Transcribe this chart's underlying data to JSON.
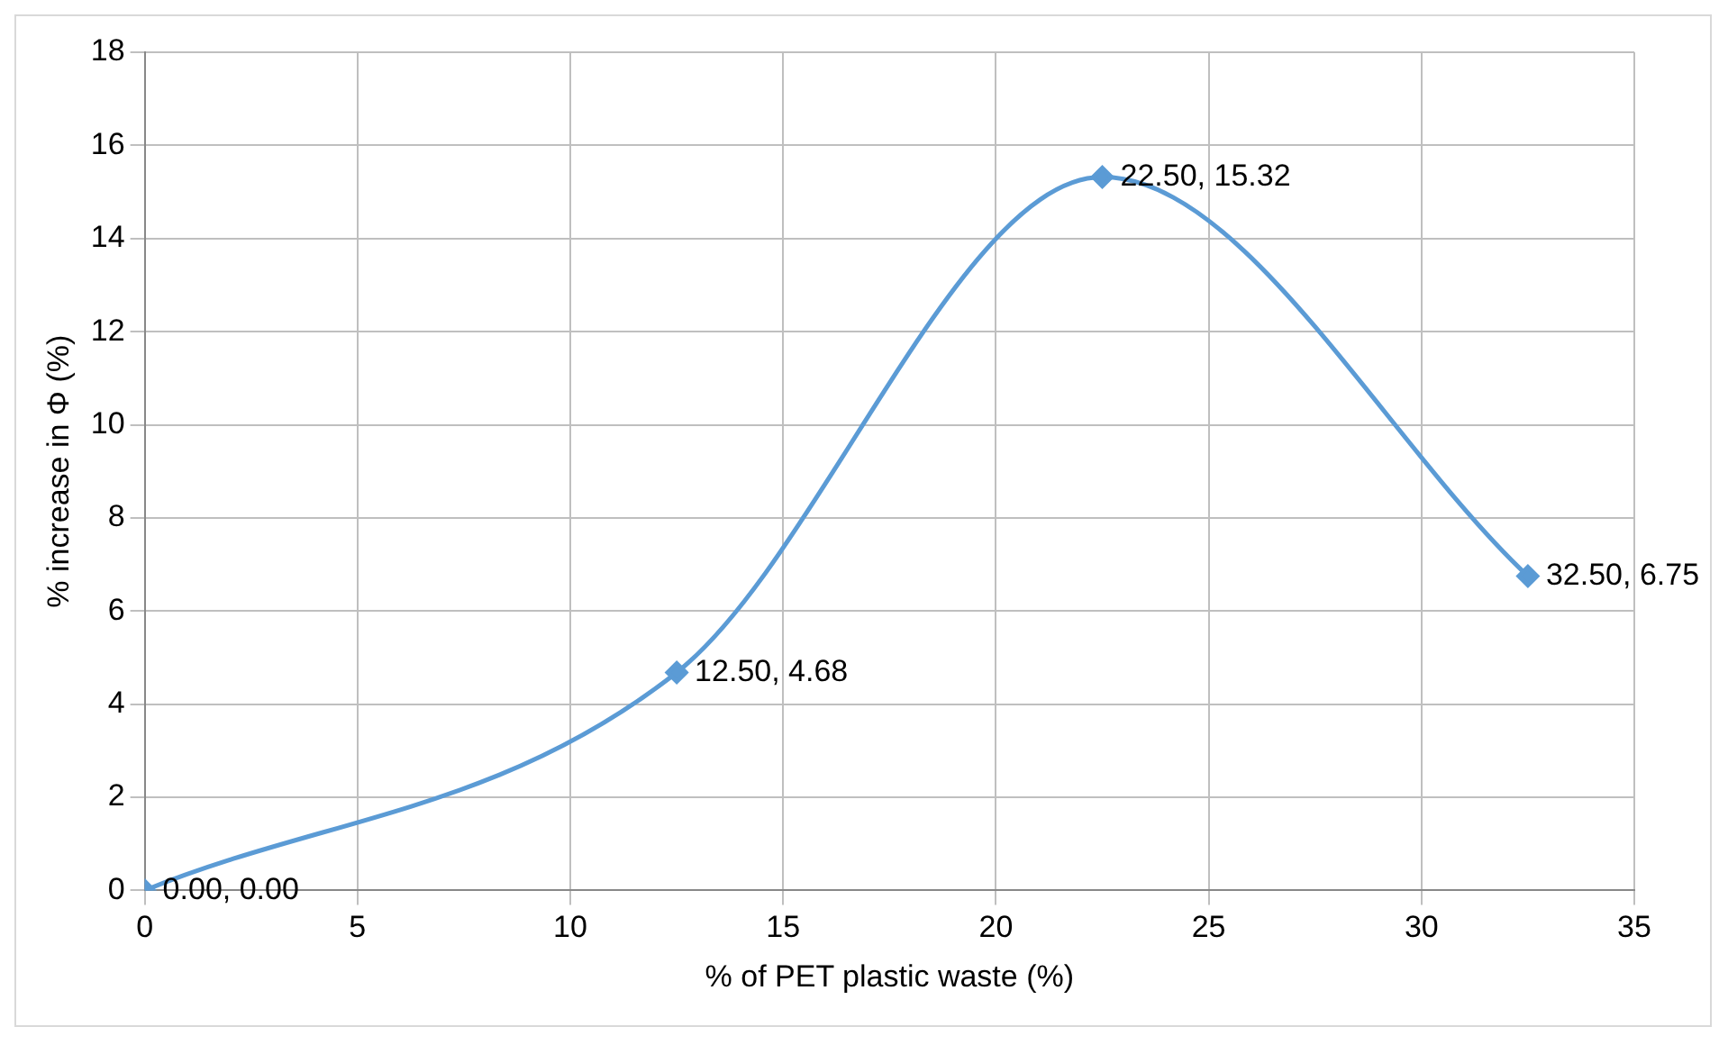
{
  "chart_data": {
    "type": "line",
    "xlabel": "% of PET plastic waste (%)",
    "ylabel": "% increase in Φ (%)",
    "x": [
      0,
      12.5,
      22.5,
      32.5
    ],
    "series": [
      {
        "color": "#5b9bd5",
        "values": [
          0,
          4.68,
          15.32,
          6.75
        ],
        "value_labels": [
          "0.00, 0.00",
          "12.50, 4.68",
          "22.50, 15.32",
          "32.50, 6.75"
        ]
      }
    ],
    "xlim": [
      0,
      35
    ],
    "xticks": [
      0,
      5,
      10,
      15,
      20,
      25,
      30,
      35
    ],
    "ylim": [
      0,
      18
    ],
    "yticks": [
      0,
      2,
      4,
      6,
      8,
      10,
      12,
      14,
      16,
      18
    ],
    "grid": true,
    "legend": false,
    "marker": "diamond",
    "line_style": "solid"
  }
}
